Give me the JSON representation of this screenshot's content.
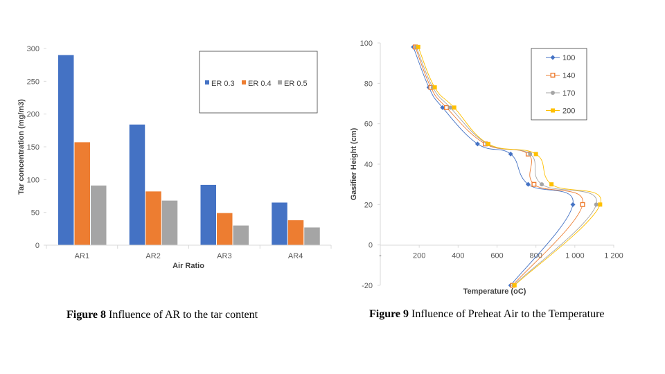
{
  "colors": {
    "blue": "#4472c4",
    "orange": "#ed7d31",
    "gray": "#a5a5a5",
    "yellow": "#ffc000",
    "axis": "#d9d9d9"
  },
  "chart_data": [
    {
      "type": "bar",
      "title": "",
      "xlabel": "Air Ratio",
      "ylabel": "Tar concentration (mg/m3)",
      "categories": [
        "AR1",
        "AR2",
        "AR3",
        "AR4"
      ],
      "series": [
        {
          "name": "ER 0.3",
          "values": [
            290,
            184,
            92,
            65
          ]
        },
        {
          "name": "ER 0.4",
          "values": [
            157,
            82,
            49,
            38
          ]
        },
        {
          "name": "ER 0.5",
          "values": [
            91,
            68,
            30,
            27
          ]
        }
      ],
      "ylim": [
        0,
        300
      ],
      "yticks": [
        "0",
        "50",
        "100",
        "150",
        "200",
        "250",
        "300"
      ],
      "legend": "top-right"
    },
    {
      "type": "line",
      "title": "",
      "xlabel": "Temperature (oC)",
      "ylabel": "Gasifier Height (cm)",
      "xlim": [
        0,
        1200
      ],
      "ylim": [
        -20,
        100
      ],
      "xticks": [
        "-",
        "200",
        "400",
        "600",
        "800",
        "1 000",
        "1 200"
      ],
      "yticks": [
        "-20",
        "0",
        "20",
        "40",
        "60",
        "80",
        "100"
      ],
      "legend": "top-right",
      "series": [
        {
          "name": "100",
          "marker": "diamond",
          "points": [
            [
              170,
              98
            ],
            [
              250,
              78
            ],
            [
              320,
              68
            ],
            [
              500,
              50
            ],
            [
              670,
              45
            ],
            [
              760,
              30
            ],
            [
              990,
              20
            ],
            [
              670,
              -20
            ]
          ]
        },
        {
          "name": "140",
          "marker": "square",
          "points": [
            [
              180,
              98
            ],
            [
              260,
              78
            ],
            [
              340,
              68
            ],
            [
              540,
              50
            ],
            [
              760,
              45
            ],
            [
              790,
              30
            ],
            [
              1040,
              20
            ],
            [
              680,
              -20
            ]
          ]
        },
        {
          "name": "170",
          "marker": "circle",
          "points": [
            [
              185,
              98
            ],
            [
              270,
              78
            ],
            [
              360,
              68
            ],
            [
              550,
              50
            ],
            [
              770,
              45
            ],
            [
              830,
              30
            ],
            [
              1110,
              20
            ],
            [
              685,
              -20
            ]
          ]
        },
        {
          "name": "200",
          "marker": "square-filled",
          "points": [
            [
              195,
              98
            ],
            [
              280,
              78
            ],
            [
              380,
              68
            ],
            [
              555,
              50
            ],
            [
              800,
              45
            ],
            [
              880,
              30
            ],
            [
              1130,
              20
            ],
            [
              690,
              -20
            ]
          ]
        }
      ]
    }
  ],
  "captions": {
    "fig8": {
      "label": "Figure 8",
      "text": " Influence of AR to the tar content"
    },
    "fig9": {
      "label": "Figure 9",
      "text": " Influence of Preheat Air to the Temperature"
    }
  }
}
